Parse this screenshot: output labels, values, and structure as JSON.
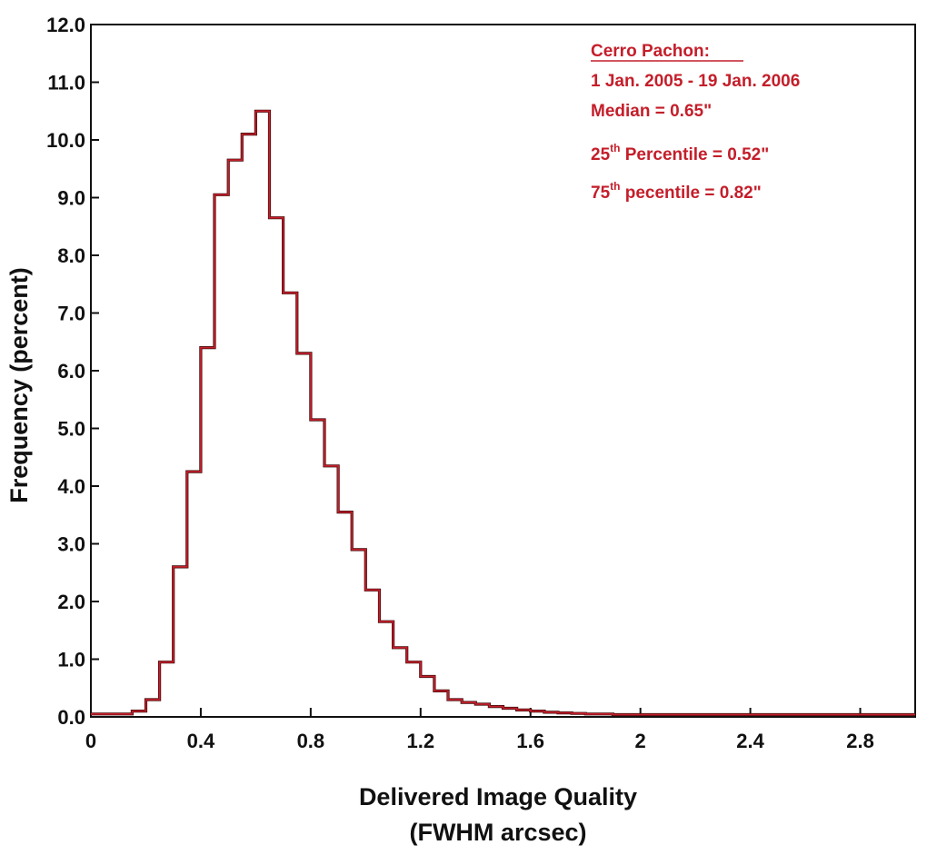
{
  "chart_data": {
    "type": "histogram",
    "xlabel_line1": "Delivered Image Quality",
    "xlabel_line2": "(FWHM arcsec)",
    "ylabel": "Frequency (percent)",
    "xlim": [
      0,
      3.0
    ],
    "ylim": [
      0,
      12.0
    ],
    "x_ticks": [
      0,
      0.4,
      0.8,
      1.2,
      1.6,
      2,
      2.4,
      2.8
    ],
    "x_tick_labels": [
      "0",
      "0.4",
      "0.8",
      "1.2",
      "1.6",
      "2",
      "2.4",
      "2.8"
    ],
    "y_ticks": [
      0,
      1,
      2,
      3,
      4,
      5,
      6,
      7,
      8,
      9,
      10,
      11,
      12
    ],
    "y_tick_labels": [
      "0.0",
      "1.0",
      "2.0",
      "3.0",
      "4.0",
      "5.0",
      "6.0",
      "7.0",
      "8.0",
      "9.0",
      "10.0",
      "11.0",
      "12.0"
    ],
    "bin_width": 0.05,
    "bin_start": 0,
    "values": [
      0.05,
      0.05,
      0.05,
      0.1,
      0.3,
      0.95,
      2.6,
      4.25,
      6.4,
      9.05,
      9.65,
      10.1,
      10.5,
      8.65,
      7.35,
      6.3,
      5.15,
      4.35,
      3.55,
      2.9,
      2.2,
      1.65,
      1.2,
      0.95,
      0.7,
      0.45,
      0.3,
      0.25,
      0.22,
      0.18,
      0.15,
      0.12,
      0.1,
      0.08,
      0.07,
      0.06,
      0.05,
      0.05,
      0.04,
      0.04,
      0.04,
      0.04,
      0.04,
      0.04,
      0.04,
      0.04,
      0.04,
      0.04,
      0.04,
      0.04,
      0.04,
      0.04,
      0.04,
      0.04,
      0.04,
      0.04,
      0.04,
      0.04,
      0.04,
      0.04
    ],
    "annotation": {
      "title": "Cerro Pachon:",
      "date_range": "1 Jan. 2005 - 19 Jan. 2006",
      "median": "Median = 0.65\"",
      "p25_prefix": "25",
      "p25_sup": "th",
      "p25_text": " Percentile = 0.52\"",
      "p75_prefix": "75",
      "p75_sup": "th",
      "p75_text": " pecentile = 0.82\""
    },
    "colors": {
      "line": "#c41e2a",
      "line_dark": "#3a0a0a",
      "annotation": "#c41e2a",
      "axes": "#111111"
    }
  }
}
